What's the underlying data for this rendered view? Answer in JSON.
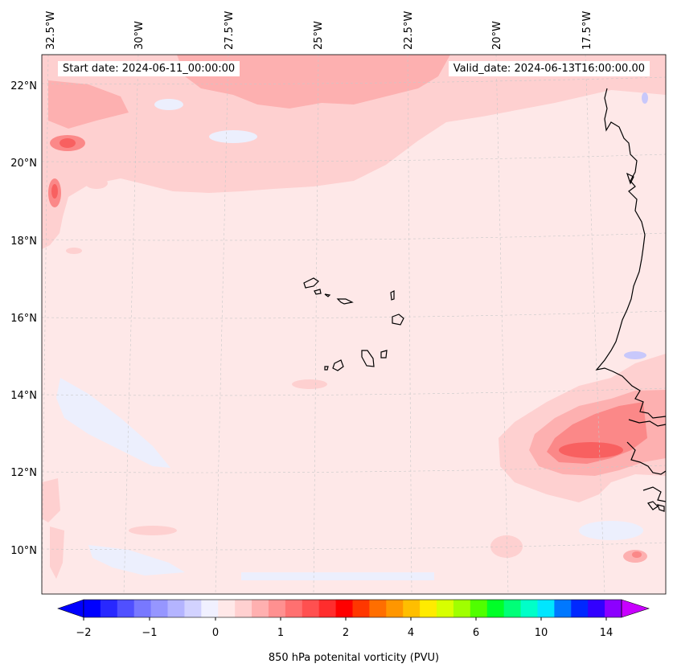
{
  "header": {
    "start_date": "Start date: 2024-06-11_00:00:00",
    "valid_date": "Valid_date: 2024-06-13T16:00:00.00"
  },
  "map": {
    "lon_labels": [
      "32.5°W",
      "30°W",
      "27.5°W",
      "25°W",
      "22.5°W",
      "20°W",
      "17.5°W"
    ],
    "lat_labels": [
      "22°N",
      "20°N",
      "18°N",
      "16°N",
      "14°N",
      "12°N",
      "10°N"
    ],
    "background_color": "#fee8e8",
    "field_colors": {
      "light_pink": "#fed0d0",
      "pink": "#fdb0b0",
      "salmon": "#fb8888",
      "red": "#f86060",
      "bluish": "#eceffd",
      "blue": "#c8c8fb"
    }
  },
  "colorbar": {
    "label": "850 hPa potenital vorticity (PVU)",
    "ticks": [
      "−2",
      "−1",
      "0",
      "1",
      "2",
      "4",
      "6",
      "10",
      "14"
    ],
    "colors": [
      "#0000ff",
      "#2828ff",
      "#5050ff",
      "#7878ff",
      "#9696ff",
      "#b4b4ff",
      "#d2d2ff",
      "#f0f0ff",
      "#ffe8e8",
      "#ffd0d0",
      "#ffb0b0",
      "#ff9090",
      "#ff7070",
      "#ff5050",
      "#ff2d2d",
      "#ff0000",
      "#ff3700",
      "#ff6e00",
      "#ff9600",
      "#ffbe00",
      "#ffeb00",
      "#d7ff00",
      "#a0ff00",
      "#50ff00",
      "#00ff28",
      "#00ff78",
      "#00ffc8",
      "#00e6ff",
      "#0078ff",
      "#0028ff",
      "#3200ff",
      "#8c00ff"
    ],
    "under_color": "#0000ff",
    "over_color": "#c800ff"
  }
}
